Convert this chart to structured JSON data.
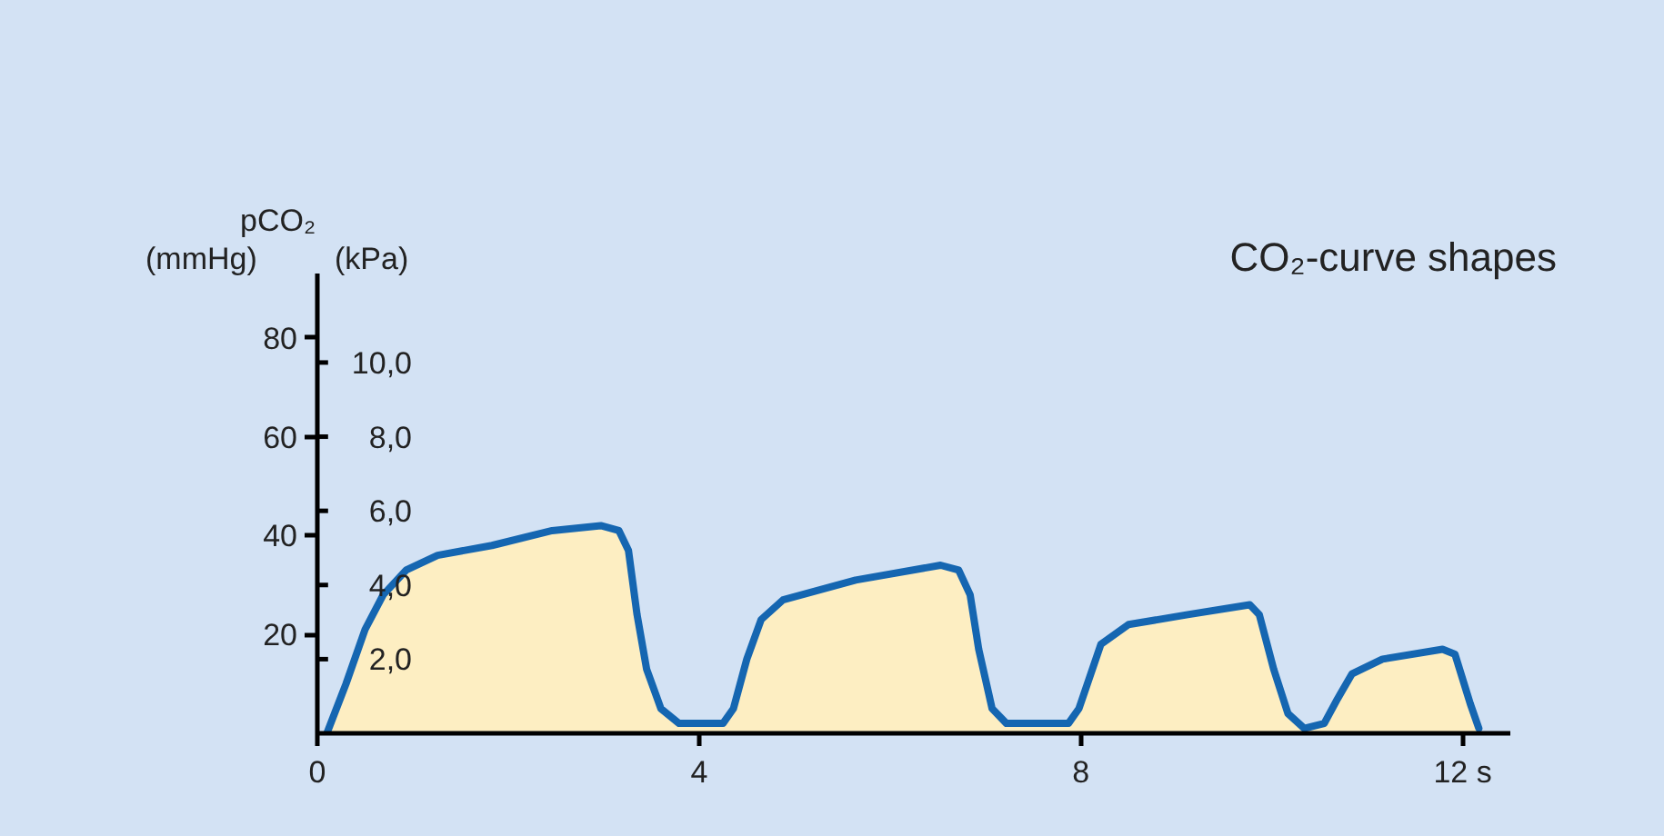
{
  "chart_data": {
    "type": "area",
    "title": "CO₂-curve shapes",
    "ylabel": "(mmHg)",
    "y2label": "(kPa)",
    "annotations": [
      "pCO₂"
    ],
    "x": [
      0.1,
      0.3,
      0.5,
      0.69,
      0.93,
      1.26,
      1.83,
      2.46,
      2.97,
      3.16,
      3.26,
      3.35,
      3.45,
      3.6,
      3.79,
      4.25,
      4.36,
      4.5,
      4.65,
      4.88,
      5.64,
      6.53,
      6.72,
      6.84,
      6.93,
      7.07,
      7.22,
      7.87,
      7.98,
      8.21,
      8.5,
      9.12,
      9.77,
      9.87,
      10.02,
      10.17,
      10.34,
      10.55,
      10.69,
      10.84,
      11.16,
      11.79,
      11.92,
      12.08,
      12.17
    ],
    "series": [
      {
        "color": "#fdeec2",
        "values": [
          0,
          10,
          21,
          28,
          33,
          36,
          38,
          41,
          42,
          41,
          37,
          24,
          13,
          5,
          2,
          2,
          5,
          15,
          23,
          27,
          31,
          34,
          33,
          28,
          17,
          5,
          2,
          2,
          5,
          18,
          22,
          24,
          26,
          24,
          13,
          4,
          1,
          2,
          7,
          12,
          15,
          17,
          16,
          6,
          1
        ]
      }
    ],
    "xlim": [
      0,
      12.5
    ],
    "xticks": [
      0,
      4,
      8,
      {
        "value": 12,
        "label": "12 s"
      }
    ],
    "ylim": [
      0,
      93
    ],
    "yticks": [
      20,
      40,
      60,
      80
    ],
    "y2lim": [
      0,
      12.4
    ],
    "y2ticks": [
      {
        "value": 2,
        "label": "2,0"
      },
      {
        "value": 4,
        "label": "4,0"
      },
      {
        "value": 6,
        "label": "6,0"
      },
      {
        "value": 8,
        "label": "8,0"
      },
      {
        "value": 10,
        "label": "10,0"
      }
    ]
  }
}
